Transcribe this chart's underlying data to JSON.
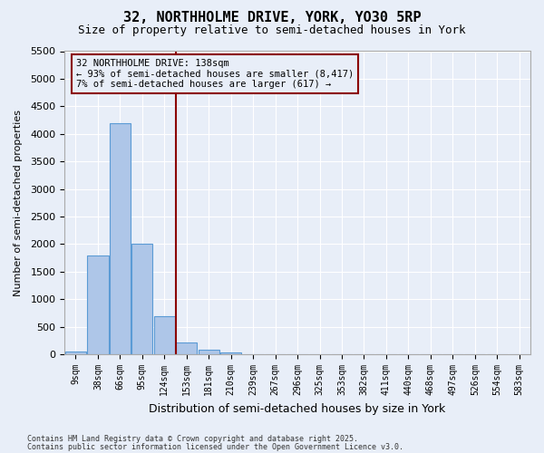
{
  "title": "32, NORTHHOLME DRIVE, YORK, YO30 5RP",
  "subtitle": "Size of property relative to semi-detached houses in York",
  "xlabel": "Distribution of semi-detached houses by size in York",
  "ylabel": "Number of semi-detached properties",
  "footer1": "Contains HM Land Registry data © Crown copyright and database right 2025.",
  "footer2": "Contains public sector information licensed under the Open Government Licence v3.0.",
  "annotation_title": "32 NORTHHOLME DRIVE: 138sqm",
  "annotation_line2": "← 93% of semi-detached houses are smaller (8,417)",
  "annotation_line3": "7% of semi-detached houses are larger (617) →",
  "bar_values": [
    50,
    1800,
    4200,
    2000,
    700,
    220,
    80,
    30,
    0,
    0,
    0,
    0,
    0,
    0,
    0,
    0,
    0,
    0,
    0,
    0,
    0
  ],
  "categories": [
    "9sqm",
    "38sqm",
    "66sqm",
    "95sqm",
    "124sqm",
    "153sqm",
    "181sqm",
    "210sqm",
    "239sqm",
    "267sqm",
    "296sqm",
    "325sqm",
    "353sqm",
    "382sqm",
    "411sqm",
    "440sqm",
    "468sqm",
    "497sqm",
    "526sqm",
    "554sqm",
    "583sqm"
  ],
  "ylim": [
    0,
    5500
  ],
  "yticks": [
    0,
    500,
    1000,
    1500,
    2000,
    2500,
    3000,
    3500,
    4000,
    4500,
    5000,
    5500
  ],
  "bar_color": "#aec6e8",
  "bar_edge_color": "#5b9bd5",
  "vline_x": 4.5,
  "vline_color": "#8b0000",
  "annotation_box_color": "#8b0000",
  "background_color": "#e8eef8",
  "grid_color": "#ffffff"
}
